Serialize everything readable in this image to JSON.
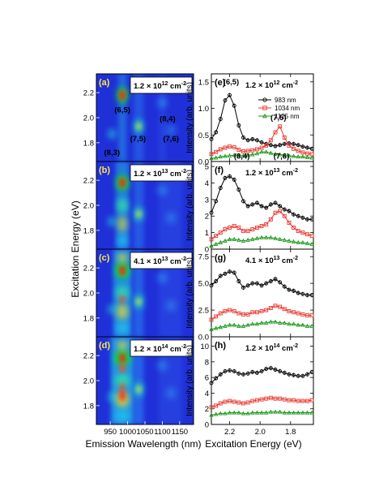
{
  "figure": {
    "left_xlabel": "Emission Wavelength (nm)",
    "left_ylabel": "Excitation Energy (eV)",
    "right_xlabel": "Excitation Energy (eV)",
    "right_ylabel": "Intensity (arb. units)"
  },
  "colors": {
    "map_background": "#2030d8",
    "series_983": "#000000",
    "series_1034": "#e8352e",
    "series_1125": "#1a9a1a"
  },
  "maps": [
    {
      "tag": "(a)",
      "fluence_mantissa": "1.2 × 10",
      "fluence_exp": "12",
      "unit": " cm",
      "unit_exp": "-2",
      "peak_labels": [
        {
          "text": "(6,5)",
          "wl": 985,
          "e": 2.06
        },
        {
          "text": "(8,4)",
          "wl": 1115,
          "e": 1.99
        },
        {
          "text": "(7,5)",
          "wl": 1030,
          "e": 1.83
        },
        {
          "text": "(7,6)",
          "wl": 1125,
          "e": 1.83
        },
        {
          "text": "(8,3)",
          "wl": 955,
          "e": 1.72
        }
      ]
    },
    {
      "tag": "(b)",
      "fluence_mantissa": "1.2 × 10",
      "fluence_exp": "13",
      "unit": " cm",
      "unit_exp": "-2",
      "peak_labels": []
    },
    {
      "tag": "(c)",
      "fluence_mantissa": "4.1 × 10",
      "fluence_exp": "13",
      "unit": " cm",
      "unit_exp": "-2",
      "peak_labels": []
    },
    {
      "tag": "(d)",
      "fluence_mantissa": "1.2 × 10",
      "fluence_exp": "14",
      "unit": " cm",
      "unit_exp": "-2",
      "peak_labels": []
    }
  ],
  "chart_data": [
    {
      "type": "heatmap",
      "panel": "(a)-(d)",
      "xlabel": "Emission Wavelength (nm)",
      "ylabel": "Excitation Energy (eV)",
      "x_ticks": [
        950,
        1000,
        1050,
        1100,
        1150
      ],
      "xlim": [
        910,
        1190
      ],
      "y_ticks": [
        1.8,
        2.0,
        2.2
      ],
      "ylim": [
        1.65,
        2.35
      ]
    },
    {
      "type": "line",
      "panel": "(e)",
      "xlabel": "Excitation Energy (eV)",
      "ylabel": "Intensity (arb. units)",
      "xlim": [
        2.32,
        1.65
      ],
      "ylim": [
        0,
        1.65
      ],
      "y_ticks": [
        0.0,
        0.5,
        1.0,
        1.5
      ],
      "legend": "top-right",
      "annotations": [
        {
          "text": "(6,5)",
          "x": 2.19,
          "y": 1.45
        },
        {
          "text": "(7,5)",
          "x": 1.88,
          "y": 0.78
        },
        {
          "text": "(8,4)",
          "x": 2.12,
          "y": 0.05
        },
        {
          "text": "(7,6)",
          "x": 1.86,
          "y": 0.05
        }
      ],
      "x": [
        2.32,
        2.29,
        2.26,
        2.23,
        2.2,
        2.17,
        2.14,
        2.11,
        2.08,
        2.05,
        2.02,
        1.99,
        1.96,
        1.93,
        1.9,
        1.87,
        1.84,
        1.81,
        1.78,
        1.75,
        1.72,
        1.69,
        1.66
      ],
      "series": [
        {
          "name": "983 nm",
          "values": [
            0.42,
            0.55,
            0.8,
            1.15,
            1.25,
            1.05,
            0.68,
            0.45,
            0.4,
            0.42,
            0.4,
            0.36,
            0.33,
            0.31,
            0.29,
            0.31,
            0.33,
            0.34,
            0.33,
            0.31,
            0.28,
            0.26,
            0.24
          ]
        },
        {
          "name": "1034 nm",
          "values": [
            0.14,
            0.18,
            0.23,
            0.26,
            0.28,
            0.27,
            0.22,
            0.19,
            0.2,
            0.21,
            0.23,
            0.26,
            0.3,
            0.4,
            0.55,
            0.66,
            0.45,
            0.3,
            0.24,
            0.2,
            0.17,
            0.15,
            0.14
          ]
        },
        {
          "name": "1125 nm",
          "values": [
            0.06,
            0.07,
            0.09,
            0.1,
            0.11,
            0.12,
            0.11,
            0.11,
            0.12,
            0.13,
            0.15,
            0.18,
            0.18,
            0.16,
            0.14,
            0.13,
            0.12,
            0.11,
            0.1,
            0.09,
            0.09,
            0.08,
            0.07
          ]
        }
      ]
    },
    {
      "type": "line",
      "panel": "(f)",
      "xlabel": "Excitation Energy (eV)",
      "ylabel": "Intensity (arb. units)",
      "xlim": [
        2.32,
        1.65
      ],
      "ylim": [
        0,
        5.3
      ],
      "y_ticks": [
        0.0,
        1.0,
        2.0,
        3.0,
        4.0,
        5.0
      ],
      "x": [
        2.32,
        2.29,
        2.26,
        2.23,
        2.2,
        2.17,
        2.14,
        2.11,
        2.08,
        2.05,
        2.02,
        1.99,
        1.96,
        1.93,
        1.9,
        1.87,
        1.84,
        1.81,
        1.78,
        1.75,
        1.72,
        1.69,
        1.66
      ],
      "series": [
        {
          "name": "983 nm",
          "values": [
            2.2,
            2.9,
            3.7,
            4.3,
            4.4,
            4.2,
            3.6,
            2.9,
            2.6,
            2.7,
            2.8,
            2.6,
            2.5,
            2.7,
            2.8,
            2.6,
            2.4,
            2.3,
            2.1,
            2.0,
            1.9,
            1.8,
            1.8
          ]
        },
        {
          "name": "1034 nm",
          "values": [
            0.6,
            0.8,
            1.0,
            1.2,
            1.3,
            1.4,
            1.3,
            1.1,
            1.1,
            1.2,
            1.3,
            1.4,
            1.5,
            1.8,
            2.2,
            2.3,
            2.0,
            1.6,
            1.3,
            1.1,
            1.0,
            0.9,
            0.8
          ]
        },
        {
          "name": "1125 nm",
          "values": [
            0.2,
            0.3,
            0.4,
            0.5,
            0.6,
            0.6,
            0.55,
            0.5,
            0.55,
            0.6,
            0.65,
            0.7,
            0.7,
            0.7,
            0.65,
            0.6,
            0.55,
            0.5,
            0.45,
            0.4,
            0.4,
            0.35,
            0.3
          ]
        }
      ]
    },
    {
      "type": "line",
      "panel": "(g)",
      "xlabel": "Excitation Energy (eV)",
      "ylabel": "Intensity (arb. units)",
      "xlim": [
        2.32,
        1.65
      ],
      "ylim": [
        0,
        8.2
      ],
      "y_ticks": [
        0.0,
        2.5,
        5.0,
        7.5
      ],
      "x": [
        2.32,
        2.29,
        2.26,
        2.23,
        2.2,
        2.17,
        2.14,
        2.11,
        2.08,
        2.05,
        2.02,
        1.99,
        1.96,
        1.93,
        1.9,
        1.87,
        1.84,
        1.81,
        1.78,
        1.75,
        1.72,
        1.69,
        1.66
      ],
      "series": [
        {
          "name": "983 nm",
          "values": [
            4.8,
            5.2,
            5.7,
            5.9,
            6.1,
            6.0,
            5.2,
            4.6,
            4.8,
            5.0,
            5.0,
            4.8,
            5.0,
            5.2,
            5.4,
            5.1,
            4.7,
            4.4,
            4.3,
            4.1,
            4.0,
            3.9,
            3.9
          ]
        },
        {
          "name": "1034 nm",
          "values": [
            1.6,
            1.9,
            2.2,
            2.4,
            2.5,
            2.4,
            2.2,
            2.1,
            2.1,
            2.3,
            2.3,
            2.4,
            2.5,
            2.7,
            2.9,
            2.8,
            2.6,
            2.4,
            2.3,
            2.2,
            2.1,
            2.0,
            2.0
          ]
        },
        {
          "name": "1125 nm",
          "values": [
            0.7,
            0.8,
            0.9,
            1.0,
            1.1,
            1.1,
            1.0,
            1.0,
            1.1,
            1.2,
            1.2,
            1.3,
            1.3,
            1.4,
            1.4,
            1.3,
            1.3,
            1.2,
            1.2,
            1.1,
            1.1,
            1.0,
            1.0
          ]
        }
      ]
    },
    {
      "type": "line",
      "panel": "(h)",
      "xlabel": "Excitation Energy (eV)",
      "ylabel": "Intensity (arb. units)",
      "xlim": [
        2.32,
        1.65
      ],
      "ylim": [
        0,
        11.2
      ],
      "y_ticks": [
        0,
        2,
        4,
        6,
        8,
        10
      ],
      "x": [
        2.32,
        2.29,
        2.26,
        2.23,
        2.2,
        2.17,
        2.14,
        2.11,
        2.08,
        2.05,
        2.02,
        1.99,
        1.96,
        1.93,
        1.9,
        1.87,
        1.84,
        1.81,
        1.78,
        1.75,
        1.72,
        1.69,
        1.66
      ],
      "series": [
        {
          "name": "983 nm",
          "values": [
            5.3,
            5.9,
            6.4,
            6.8,
            6.9,
            6.8,
            6.5,
            6.4,
            6.5,
            6.7,
            6.6,
            6.8,
            7.1,
            7.2,
            7.0,
            6.8,
            6.6,
            6.4,
            6.3,
            6.2,
            6.2,
            6.4,
            6.7
          ]
        },
        {
          "name": "1034 nm",
          "values": [
            2.2,
            2.4,
            2.7,
            2.9,
            3.0,
            2.9,
            2.8,
            2.7,
            2.8,
            3.0,
            3.1,
            3.2,
            3.3,
            3.4,
            3.3,
            3.3,
            3.2,
            3.1,
            3.1,
            3.0,
            3.0,
            3.0,
            3.1
          ]
        },
        {
          "name": "1125 nm",
          "values": [
            1.2,
            1.3,
            1.4,
            1.4,
            1.5,
            1.5,
            1.5,
            1.4,
            1.4,
            1.5,
            1.5,
            1.5,
            1.5,
            1.6,
            1.6,
            1.6,
            1.5,
            1.5,
            1.5,
            1.5,
            1.5,
            1.5,
            1.5
          ]
        }
      ]
    }
  ]
}
